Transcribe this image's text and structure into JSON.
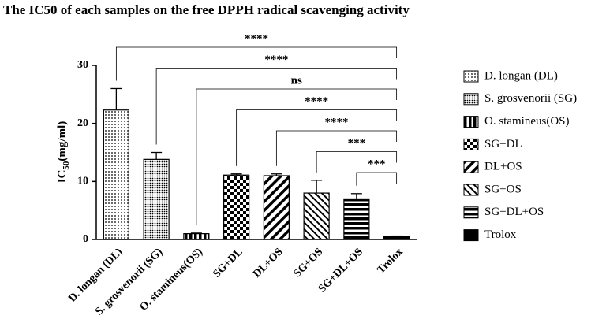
{
  "chart_data": {
    "type": "bar",
    "title": "The IC50 of each samples on the free DPPH radical scavenging activity",
    "y_label": {
      "main": "IC",
      "sub": "50",
      "unit": "(mg/ml)"
    },
    "categories": [
      "D. longan (DL)",
      "S. grosvenorii (SG)",
      "O. stamineus(OS)",
      "SG+DL",
      "DL+OS",
      "SG+OS",
      "SG+DL+OS",
      "Trolox"
    ],
    "values": [
      22.3,
      13.8,
      1.0,
      11.1,
      11.0,
      8.0,
      7.0,
      0.5
    ],
    "errors": [
      3.7,
      1.2,
      0.1,
      0.2,
      0.3,
      2.2,
      0.9,
      0.1
    ],
    "patterns": [
      "dots",
      "fine-dots",
      "vstripes",
      "checker",
      "diag-back",
      "diag",
      "hstripes",
      "solid"
    ],
    "color": "#000000",
    "significance": [
      "****",
      "****",
      "ns",
      "****",
      "****",
      "***",
      "***",
      null
    ],
    "ylim": [
      0,
      30
    ],
    "yticks": [
      0,
      10,
      20,
      30
    ],
    "legend": "right"
  }
}
